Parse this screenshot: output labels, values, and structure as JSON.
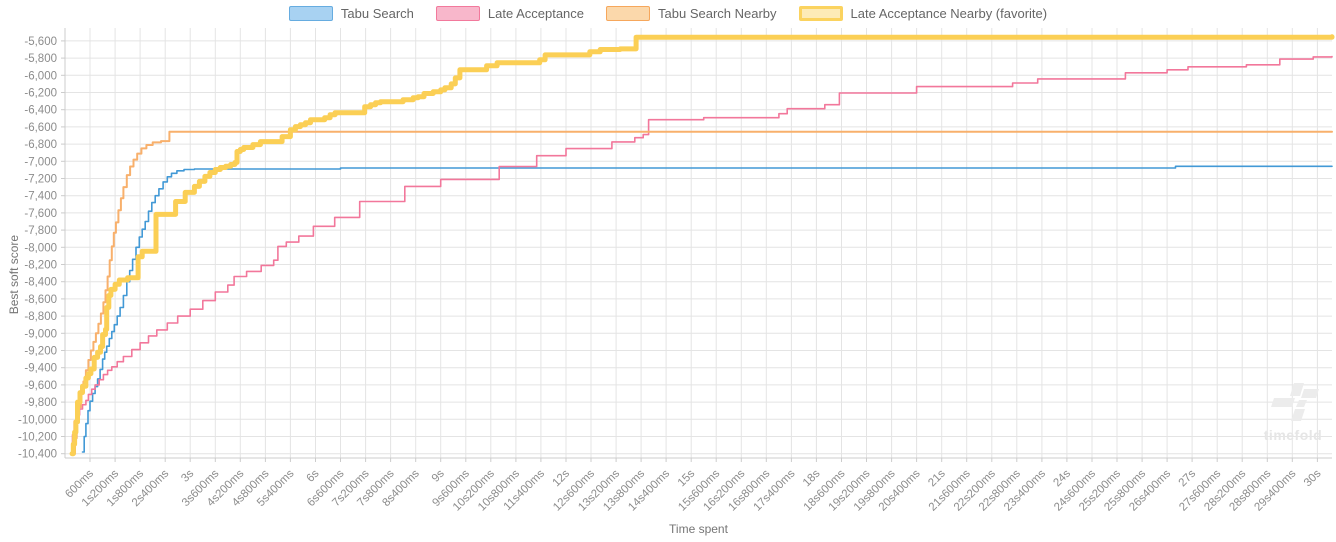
{
  "chart": {
    "xlabel": "Time spent",
    "ylabel": "Best soft score",
    "watermark": "timefold"
  },
  "chart_data": {
    "type": "line",
    "step": true,
    "title": "",
    "xlabel": "Time spent",
    "ylabel": "Best soft score",
    "grid": true,
    "legend_position": "top",
    "xlim_ms": [
      0,
      30350
    ],
    "ylim": [
      -10450,
      -5450
    ],
    "colors": {
      "grid": "#e4e4e4",
      "axis_border": "#cccccc",
      "tick_text": "#8c8c8c"
    },
    "y_ticks": [
      {
        "v": -5600,
        "label": "-5,600"
      },
      {
        "v": -5800,
        "label": "-5,800"
      },
      {
        "v": -6000,
        "label": "-6,000"
      },
      {
        "v": -6200,
        "label": "-6,200"
      },
      {
        "v": -6400,
        "label": "-6,400"
      },
      {
        "v": -6600,
        "label": "-6,600"
      },
      {
        "v": -6800,
        "label": "-6,800"
      },
      {
        "v": -7000,
        "label": "-7,000"
      },
      {
        "v": -7200,
        "label": "-7,200"
      },
      {
        "v": -7400,
        "label": "-7,400"
      },
      {
        "v": -7600,
        "label": "-7,600"
      },
      {
        "v": -7800,
        "label": "-7,800"
      },
      {
        "v": -8000,
        "label": "-8,000"
      },
      {
        "v": -8200,
        "label": "-8,200"
      },
      {
        "v": -8400,
        "label": "-8,400"
      },
      {
        "v": -8600,
        "label": "-8,600"
      },
      {
        "v": -8800,
        "label": "-8,800"
      },
      {
        "v": -9000,
        "label": "-9,000"
      },
      {
        "v": -9200,
        "label": "-9,200"
      },
      {
        "v": -9400,
        "label": "-9,400"
      },
      {
        "v": -9600,
        "label": "-9,600"
      },
      {
        "v": -9800,
        "label": "-9,800"
      },
      {
        "v": -10000,
        "label": "-10,000"
      },
      {
        "v": -10200,
        "label": "-10,200"
      },
      {
        "v": -10400,
        "label": "-10,400"
      }
    ],
    "x_ticks": [
      {
        "v": 600,
        "label": "600ms"
      },
      {
        "v": 1200,
        "label": "1s200ms"
      },
      {
        "v": 1800,
        "label": "1s800ms"
      },
      {
        "v": 2400,
        "label": "2s400ms"
      },
      {
        "v": 3000,
        "label": "3s"
      },
      {
        "v": 3600,
        "label": "3s600ms"
      },
      {
        "v": 4200,
        "label": "4s200ms"
      },
      {
        "v": 4800,
        "label": "4s800ms"
      },
      {
        "v": 5400,
        "label": "5s400ms"
      },
      {
        "v": 6000,
        "label": "6s"
      },
      {
        "v": 6600,
        "label": "6s600ms"
      },
      {
        "v": 7200,
        "label": "7s200ms"
      },
      {
        "v": 7800,
        "label": "7s800ms"
      },
      {
        "v": 8400,
        "label": "8s400ms"
      },
      {
        "v": 9000,
        "label": "9s"
      },
      {
        "v": 9600,
        "label": "9s600ms"
      },
      {
        "v": 10200,
        "label": "10s200ms"
      },
      {
        "v": 10800,
        "label": "10s800ms"
      },
      {
        "v": 11400,
        "label": "11s400ms"
      },
      {
        "v": 12000,
        "label": "12s"
      },
      {
        "v": 12600,
        "label": "12s600ms"
      },
      {
        "v": 13200,
        "label": "13s200ms"
      },
      {
        "v": 13800,
        "label": "13s800ms"
      },
      {
        "v": 14400,
        "label": "14s400ms"
      },
      {
        "v": 15000,
        "label": "15s"
      },
      {
        "v": 15600,
        "label": "15s600ms"
      },
      {
        "v": 16200,
        "label": "16s200ms"
      },
      {
        "v": 16800,
        "label": "16s800ms"
      },
      {
        "v": 17400,
        "label": "17s400ms"
      },
      {
        "v": 18000,
        "label": "18s"
      },
      {
        "v": 18600,
        "label": "18s600ms"
      },
      {
        "v": 19200,
        "label": "19s200ms"
      },
      {
        "v": 19800,
        "label": "19s800ms"
      },
      {
        "v": 20400,
        "label": "20s400ms"
      },
      {
        "v": 21000,
        "label": "21s"
      },
      {
        "v": 21600,
        "label": "21s600ms"
      },
      {
        "v": 22200,
        "label": "22s200ms"
      },
      {
        "v": 22800,
        "label": "22s800ms"
      },
      {
        "v": 23400,
        "label": "23s400ms"
      },
      {
        "v": 24000,
        "label": "24s"
      },
      {
        "v": 24600,
        "label": "24s600ms"
      },
      {
        "v": 25200,
        "label": "25s200ms"
      },
      {
        "v": 25800,
        "label": "25s800ms"
      },
      {
        "v": 26400,
        "label": "26s400ms"
      },
      {
        "v": 27000,
        "label": "27s"
      },
      {
        "v": 27600,
        "label": "27s600ms"
      },
      {
        "v": 28200,
        "label": "28s200ms"
      },
      {
        "v": 28800,
        "label": "28s800ms"
      },
      {
        "v": 29400,
        "label": "29s400ms"
      },
      {
        "v": 30000,
        "label": "30s"
      }
    ],
    "series": [
      {
        "name": "Tabu Search",
        "slug": "tabu-search",
        "color": "#4299d6",
        "legend_fill": "#a8d2f2",
        "legend_border": "#66ace0",
        "line_width": 1.6,
        "legend_border_width": 1.5,
        "points": [
          [
            420,
            -10380
          ],
          [
            460,
            -10200
          ],
          [
            500,
            -10050
          ],
          [
            550,
            -9900
          ],
          [
            600,
            -9790
          ],
          [
            660,
            -9700
          ],
          [
            720,
            -9620
          ],
          [
            780,
            -9530
          ],
          [
            840,
            -9420
          ],
          [
            900,
            -9300
          ],
          [
            950,
            -9220
          ],
          [
            1000,
            -9150
          ],
          [
            1060,
            -9060
          ],
          [
            1120,
            -8980
          ],
          [
            1180,
            -8900
          ],
          [
            1250,
            -8800
          ],
          [
            1320,
            -8700
          ],
          [
            1400,
            -8560
          ],
          [
            1480,
            -8400
          ],
          [
            1550,
            -8270
          ],
          [
            1620,
            -8140
          ],
          [
            1700,
            -8000
          ],
          [
            1780,
            -7880
          ],
          [
            1850,
            -7790
          ],
          [
            1920,
            -7700
          ],
          [
            2000,
            -7580
          ],
          [
            2080,
            -7480
          ],
          [
            2160,
            -7400
          ],
          [
            2250,
            -7320
          ],
          [
            2350,
            -7240
          ],
          [
            2450,
            -7180
          ],
          [
            2550,
            -7140
          ],
          [
            2680,
            -7110
          ],
          [
            2850,
            -7095
          ],
          [
            3100,
            -7090
          ],
          [
            6600,
            -7078
          ],
          [
            26600,
            -7058
          ],
          [
            30350,
            -7058
          ]
        ]
      },
      {
        "name": "Late Acceptance",
        "slug": "late-acceptance",
        "color": "#f2779b",
        "legend_fill": "#f8b7cb",
        "legend_border": "#f2799c",
        "line_width": 1.6,
        "legend_border_width": 1.5,
        "points": [
          [
            140,
            -10400
          ],
          [
            180,
            -10180
          ],
          [
            220,
            -10020
          ],
          [
            280,
            -9950
          ],
          [
            350,
            -9880
          ],
          [
            420,
            -9830
          ],
          [
            500,
            -9780
          ],
          [
            560,
            -9710
          ],
          [
            640,
            -9650
          ],
          [
            720,
            -9600
          ],
          [
            820,
            -9540
          ],
          [
            920,
            -9480
          ],
          [
            1020,
            -9430
          ],
          [
            1120,
            -9390
          ],
          [
            1250,
            -9330
          ],
          [
            1400,
            -9270
          ],
          [
            1600,
            -9190
          ],
          [
            1800,
            -9110
          ],
          [
            2000,
            -9030
          ],
          [
            2200,
            -8960
          ],
          [
            2450,
            -8880
          ],
          [
            2700,
            -8800
          ],
          [
            3000,
            -8720
          ],
          [
            3300,
            -8620
          ],
          [
            3600,
            -8520
          ],
          [
            3900,
            -8440
          ],
          [
            4050,
            -8340
          ],
          [
            4350,
            -8280
          ],
          [
            4700,
            -8210
          ],
          [
            5000,
            -8150
          ],
          [
            5100,
            -7990
          ],
          [
            5300,
            -7940
          ],
          [
            5600,
            -7870
          ],
          [
            5950,
            -7756
          ],
          [
            6460,
            -7652
          ],
          [
            7060,
            -7467
          ],
          [
            8140,
            -7292
          ],
          [
            9000,
            -7211
          ],
          [
            10400,
            -7060
          ],
          [
            11300,
            -6935
          ],
          [
            12000,
            -6852
          ],
          [
            13100,
            -6775
          ],
          [
            13650,
            -6725
          ],
          [
            13850,
            -6690
          ],
          [
            13980,
            -6516
          ],
          [
            15300,
            -6493
          ],
          [
            17100,
            -6446
          ],
          [
            17300,
            -6388
          ],
          [
            18200,
            -6342
          ],
          [
            18550,
            -6206
          ],
          [
            20400,
            -6131
          ],
          [
            22700,
            -6090
          ],
          [
            23300,
            -6042
          ],
          [
            25400,
            -5971
          ],
          [
            26400,
            -5936
          ],
          [
            26900,
            -5901
          ],
          [
            28300,
            -5878
          ],
          [
            29100,
            -5812
          ],
          [
            29900,
            -5786
          ],
          [
            30350,
            -5782
          ]
        ]
      },
      {
        "name": "Tabu Search Nearby",
        "slug": "tabu-search-nearby",
        "color": "#f8b06c",
        "legend_fill": "#fbd8ab",
        "legend_border": "#f6a75c",
        "line_width": 2,
        "legend_border_width": 1.5,
        "points": [
          [
            200,
            -10400
          ],
          [
            240,
            -10220
          ],
          [
            280,
            -10040
          ],
          [
            330,
            -9860
          ],
          [
            380,
            -9700
          ],
          [
            440,
            -9560
          ],
          [
            500,
            -9430
          ],
          [
            560,
            -9310
          ],
          [
            620,
            -9200
          ],
          [
            680,
            -9100
          ],
          [
            740,
            -9000
          ],
          [
            800,
            -8890
          ],
          [
            860,
            -8770
          ],
          [
            920,
            -8640
          ],
          [
            970,
            -8500
          ],
          [
            1020,
            -8340
          ],
          [
            1070,
            -8150
          ],
          [
            1120,
            -7990
          ],
          [
            1170,
            -7830
          ],
          [
            1220,
            -7710
          ],
          [
            1280,
            -7570
          ],
          [
            1340,
            -7430
          ],
          [
            1400,
            -7300
          ],
          [
            1480,
            -7160
          ],
          [
            1560,
            -7060
          ],
          [
            1640,
            -6980
          ],
          [
            1730,
            -6910
          ],
          [
            1830,
            -6850
          ],
          [
            1950,
            -6810
          ],
          [
            2100,
            -6780
          ],
          [
            2300,
            -6765
          ],
          [
            2500,
            -6656
          ],
          [
            30350,
            -6656
          ]
        ]
      },
      {
        "name": "Late Acceptance Nearby (favorite)",
        "slug": "late-acceptance-nearby",
        "color": "#fbcf55",
        "legend_fill": "#fdebb7",
        "legend_border": "#fbd35f",
        "line_width": 5,
        "legend_border_width": 3,
        "points": [
          [
            170,
            -10400
          ],
          [
            200,
            -10290
          ],
          [
            230,
            -10150
          ],
          [
            260,
            -10030
          ],
          [
            300,
            -9800
          ],
          [
            360,
            -9690
          ],
          [
            420,
            -9615
          ],
          [
            500,
            -9520
          ],
          [
            560,
            -9470
          ],
          [
            620,
            -9415
          ],
          [
            700,
            -9280
          ],
          [
            780,
            -9220
          ],
          [
            850,
            -9155
          ],
          [
            900,
            -9015
          ],
          [
            970,
            -8955
          ],
          [
            1000,
            -8700
          ],
          [
            1050,
            -8560
          ],
          [
            1100,
            -8490
          ],
          [
            1200,
            -8430
          ],
          [
            1300,
            -8380
          ],
          [
            1500,
            -8355
          ],
          [
            1750,
            -8110
          ],
          [
            1850,
            -8046
          ],
          [
            2180,
            -7617
          ],
          [
            2650,
            -7467
          ],
          [
            2880,
            -7362
          ],
          [
            3100,
            -7292
          ],
          [
            3220,
            -7234
          ],
          [
            3350,
            -7176
          ],
          [
            3470,
            -7130
          ],
          [
            3600,
            -7095
          ],
          [
            3720,
            -7072
          ],
          [
            3850,
            -7058
          ],
          [
            3970,
            -7037
          ],
          [
            4070,
            -7014
          ],
          [
            4120,
            -6886
          ],
          [
            4200,
            -6863
          ],
          [
            4280,
            -6840
          ],
          [
            4500,
            -6806
          ],
          [
            4680,
            -6771
          ],
          [
            5200,
            -6713
          ],
          [
            5400,
            -6632
          ],
          [
            5520,
            -6597
          ],
          [
            5640,
            -6574
          ],
          [
            5760,
            -6551
          ],
          [
            5880,
            -6516
          ],
          [
            6220,
            -6493
          ],
          [
            6350,
            -6458
          ],
          [
            6470,
            -6435
          ],
          [
            7180,
            -6365
          ],
          [
            7320,
            -6342
          ],
          [
            7440,
            -6319
          ],
          [
            7560,
            -6307
          ],
          [
            8100,
            -6284
          ],
          [
            8340,
            -6261
          ],
          [
            8460,
            -6249
          ],
          [
            8600,
            -6212
          ],
          [
            8820,
            -6192
          ],
          [
            9000,
            -6170
          ],
          [
            9100,
            -6145
          ],
          [
            9250,
            -6100
          ],
          [
            9350,
            -6030
          ],
          [
            9460,
            -5936
          ],
          [
            10100,
            -5890
          ],
          [
            10350,
            -5855
          ],
          [
            11370,
            -5820
          ],
          [
            11500,
            -5763
          ],
          [
            12570,
            -5727
          ],
          [
            12820,
            -5700
          ],
          [
            13300,
            -5693
          ],
          [
            13680,
            -5557
          ],
          [
            30350,
            -5552
          ]
        ]
      }
    ]
  }
}
